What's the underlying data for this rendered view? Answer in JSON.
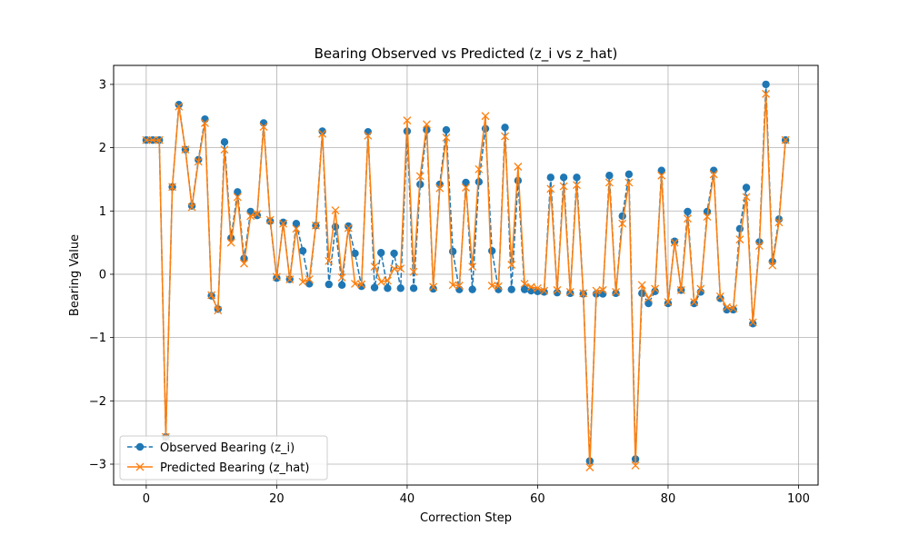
{
  "chart_data": {
    "type": "line",
    "title": "Bearing Observed vs Predicted (z_i vs z_hat)",
    "xlabel": "Correction Step",
    "ylabel": "Bearing Value",
    "xlim": [
      -5,
      103
    ],
    "ylim": [
      -3.33,
      3.3
    ],
    "xticks": [
      0,
      20,
      40,
      60,
      80,
      100
    ],
    "yticks": [
      -3,
      -2,
      -1,
      0,
      1,
      2,
      3
    ],
    "xtick_labels": [
      "0",
      "20",
      "40",
      "60",
      "80",
      "100"
    ],
    "ytick_labels": [
      "−3",
      "−2",
      "−1",
      "0",
      "1",
      "2",
      "3"
    ],
    "grid": true,
    "legend_position": "lower-left",
    "series": [
      {
        "name": "Observed Bearing (z_i)",
        "color": "#1f77b4",
        "style": "dashed",
        "marker": "circle",
        "values": [
          2.12,
          2.12,
          2.12,
          -2.57,
          1.38,
          2.68,
          1.97,
          1.08,
          1.81,
          2.45,
          -0.34,
          -0.55,
          2.09,
          0.57,
          1.3,
          0.25,
          0.99,
          0.93,
          2.39,
          0.84,
          -0.06,
          0.82,
          -0.08,
          0.8,
          0.37,
          -0.15,
          0.77,
          2.26,
          -0.16,
          0.75,
          -0.17,
          0.76,
          0.33,
          -0.19,
          2.25,
          -0.21,
          0.34,
          -0.22,
          0.33,
          -0.22,
          2.26,
          -0.22,
          1.42,
          2.28,
          -0.23,
          1.42,
          2.28,
          0.36,
          -0.24,
          1.45,
          -0.24,
          1.46,
          2.3,
          0.37,
          -0.24,
          2.32,
          -0.24,
          1.48,
          -0.24,
          -0.26,
          -0.27,
          -0.28,
          1.53,
          -0.29,
          1.53,
          -0.3,
          1.53,
          -0.31,
          -2.95,
          -0.31,
          -0.31,
          1.56,
          -0.3,
          0.92,
          1.58,
          -2.92,
          -0.3,
          -0.46,
          -0.27,
          1.64,
          -0.46,
          0.52,
          -0.25,
          0.99,
          -0.46,
          -0.28,
          0.99,
          1.64,
          -0.38,
          -0.56,
          -0.56,
          0.72,
          1.37,
          -0.78,
          0.51,
          3.0,
          0.2,
          0.87,
          2.12
        ]
      },
      {
        "name": "Predicted Bearing (z_hat)",
        "color": "#ff7f0e",
        "style": "solid",
        "marker": "x",
        "values": [
          2.12,
          2.12,
          2.12,
          -2.57,
          1.38,
          2.65,
          1.97,
          1.06,
          1.78,
          2.39,
          -0.33,
          -0.57,
          1.97,
          0.5,
          1.22,
          0.17,
          0.92,
          0.95,
          2.33,
          0.86,
          -0.04,
          0.8,
          -0.08,
          0.72,
          -0.12,
          -0.08,
          0.77,
          2.22,
          0.21,
          1.01,
          -0.05,
          0.73,
          -0.15,
          -0.16,
          2.19,
          0.12,
          -0.12,
          -0.1,
          0.09,
          0.09,
          2.43,
          0.04,
          1.55,
          2.37,
          -0.2,
          1.36,
          2.16,
          -0.17,
          -0.18,
          1.37,
          0.12,
          1.66,
          2.5,
          -0.18,
          -0.19,
          2.18,
          0.15,
          1.7,
          -0.15,
          -0.2,
          -0.22,
          -0.26,
          1.35,
          -0.25,
          1.39,
          -0.28,
          1.41,
          -0.3,
          -3.05,
          -0.26,
          -0.25,
          1.45,
          -0.28,
          0.8,
          1.45,
          -3.02,
          -0.17,
          -0.38,
          -0.23,
          1.56,
          -0.44,
          0.5,
          -0.25,
          0.88,
          -0.44,
          -0.23,
          0.91,
          1.58,
          -0.35,
          -0.52,
          -0.54,
          0.55,
          1.22,
          -0.76,
          0.45,
          2.85,
          0.14,
          0.82,
          2.12
        ]
      }
    ]
  }
}
